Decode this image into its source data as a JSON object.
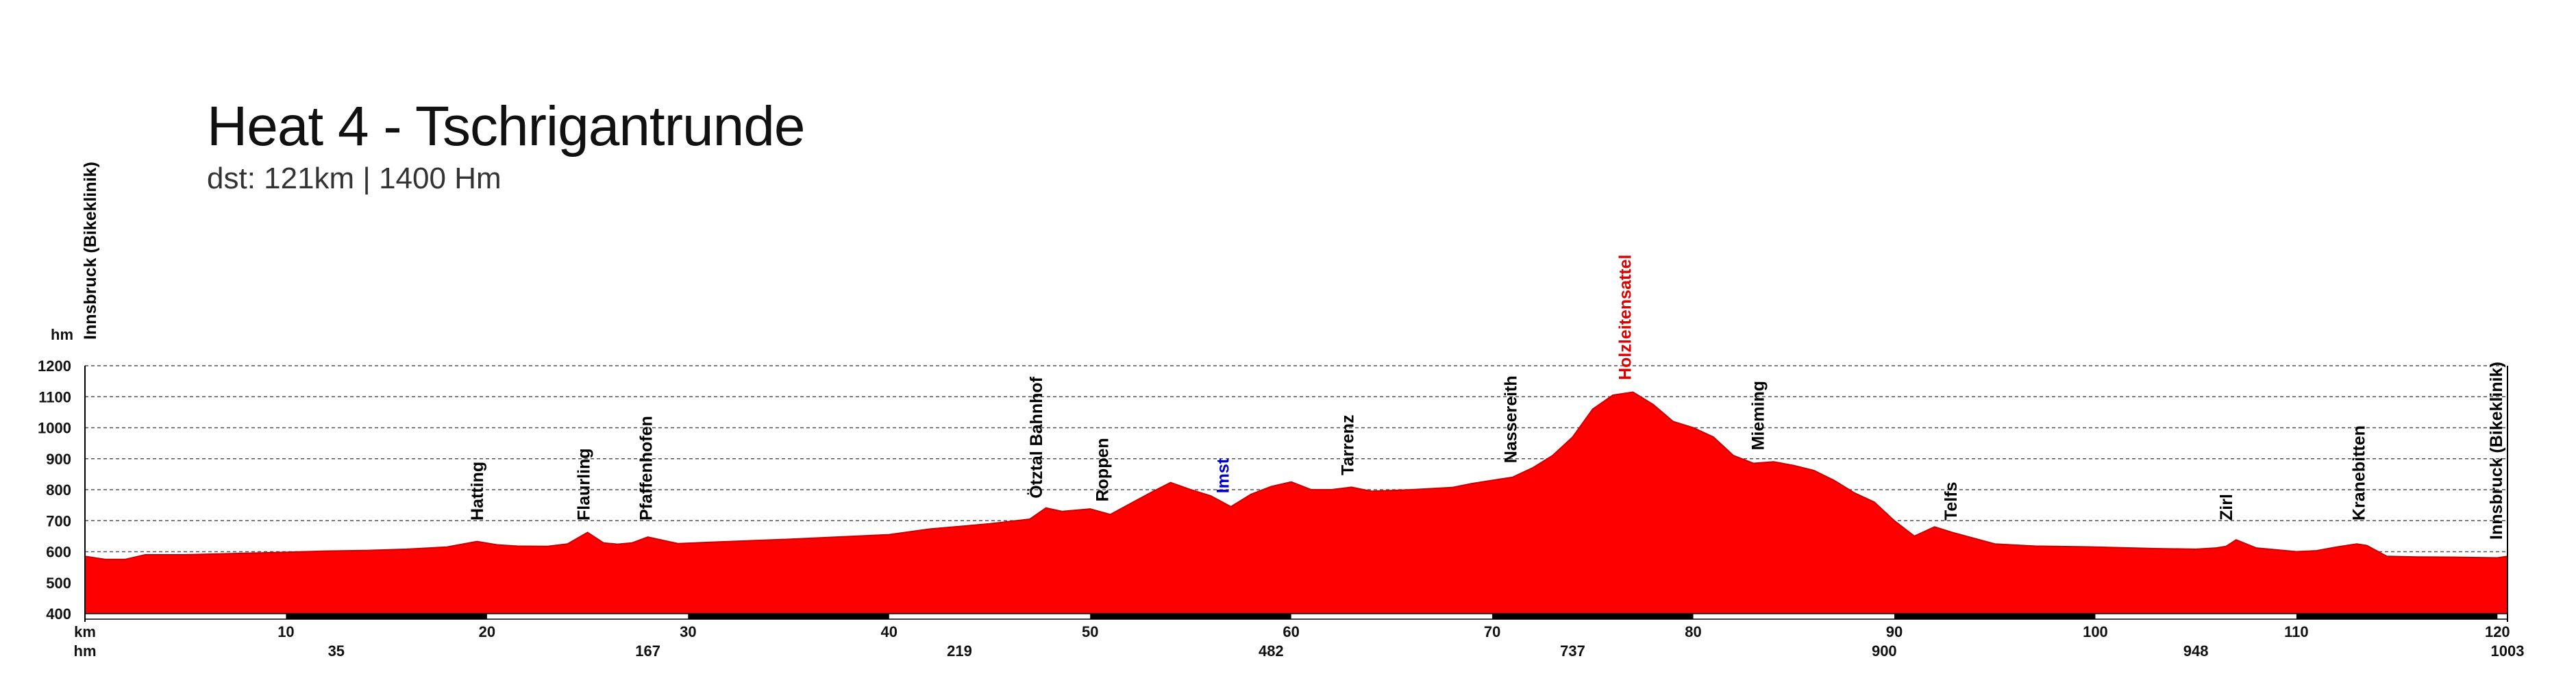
{
  "title": "Heat 4 - Tschrigantrunde",
  "subtitle": "dst: 121km | 1400 Hm",
  "chart_data": {
    "type": "area",
    "title": "Heat 4 - Tschrigantrunde",
    "subtitle": "dst: 121km | 1400 Hm",
    "ylabel": "hm",
    "xlabel": "km",
    "secondary_xlabel": "hm",
    "xlim": [
      0,
      120.5
    ],
    "ylim": [
      400,
      1200
    ],
    "yticks": [
      "400",
      "500",
      "600",
      "700",
      "800",
      "900",
      "1000",
      "1100",
      "1200"
    ],
    "xticks": [
      "10",
      "20",
      "30",
      "40",
      "50",
      "60",
      "70",
      "80",
      "90",
      "100",
      "110",
      "120"
    ],
    "grid": true,
    "fill_color": "#ff0000",
    "elevation_gain_ticks": [
      {
        "km": 12.5,
        "label": "35"
      },
      {
        "km": 28.0,
        "label": "167"
      },
      {
        "km": 43.5,
        "label": "219"
      },
      {
        "km": 59.0,
        "label": "482"
      },
      {
        "km": 74.0,
        "label": "737"
      },
      {
        "km": 89.5,
        "label": "900"
      },
      {
        "km": 105.0,
        "label": "948"
      },
      {
        "km": 120.5,
        "label": "1003"
      }
    ],
    "x": [
      0,
      1,
      2,
      3,
      5,
      8,
      10,
      12,
      14,
      16,
      18,
      19.5,
      20.5,
      21.5,
      23,
      24,
      25,
      25.8,
      26.5,
      27.2,
      28,
      29.5,
      31,
      35,
      40,
      42,
      45,
      47,
      47.8,
      48.6,
      50,
      51,
      52,
      53,
      54,
      55,
      56,
      57,
      58,
      59,
      60,
      61,
      62,
      63,
      64,
      66,
      68,
      69,
      70,
      71,
      72,
      73,
      74,
      75,
      76,
      77,
      78,
      79,
      80,
      81,
      82,
      83,
      84,
      85,
      86,
      87,
      88,
      89,
      90,
      91,
      92,
      93,
      95,
      97,
      100,
      103,
      105,
      106,
      106.5,
      107,
      108,
      110,
      111,
      112,
      113,
      113.5,
      114.5,
      116,
      118,
      120,
      120.5
    ],
    "elevation": [
      585,
      575,
      575,
      590,
      590,
      595,
      598,
      602,
      604,
      608,
      615,
      633,
      622,
      618,
      617,
      625,
      662,
      628,
      624,
      628,
      647,
      626,
      630,
      640,
      655,
      673,
      690,
      705,
      741,
      730,
      738,
      720,
      755,
      790,
      823,
      800,
      780,
      745,
      785,
      810,
      825,
      800,
      800,
      808,
      795,
      800,
      807,
      820,
      830,
      840,
      870,
      910,
      970,
      1060,
      1105,
      1115,
      1075,
      1020,
      1000,
      970,
      910,
      885,
      890,
      878,
      862,
      830,
      790,
      760,
      700,
      650,
      680,
      660,
      625,
      618,
      615,
      610,
      608,
      612,
      617,
      638,
      612,
      600,
      603,
      615,
      625,
      620,
      585,
      583,
      582,
      580,
      585
    ],
    "waypoints": [
      {
        "km": 0,
        "name": "Innsbruck (Bikeklinik)",
        "color": "#000000"
      },
      {
        "km": 19.8,
        "name": "Hatting",
        "color": "#000000"
      },
      {
        "km": 25.1,
        "name": "Flaurling",
        "color": "#000000"
      },
      {
        "km": 28.2,
        "name": "Pfaffenhofen",
        "color": "#000000"
      },
      {
        "km": 47.6,
        "name": "Ötztal Bahnhof",
        "color": "#000000"
      },
      {
        "km": 50.9,
        "name": "Roppen",
        "color": "#000000"
      },
      {
        "km": 56.9,
        "name": "Imst",
        "color": "#0000cc"
      },
      {
        "km": 63.1,
        "name": "Tarrenz",
        "color": "#000000"
      },
      {
        "km": 71.2,
        "name": "Nassereith",
        "color": "#000000"
      },
      {
        "km": 76.9,
        "name": "Holzleitensattel",
        "color": "#dd0000"
      },
      {
        "km": 83.5,
        "name": "Mieming",
        "color": "#000000"
      },
      {
        "km": 93.1,
        "name": "Telfs",
        "color": "#000000"
      },
      {
        "km": 106.8,
        "name": "Zirl",
        "color": "#000000"
      },
      {
        "km": 113.4,
        "name": "Kranebitten",
        "color": "#000000"
      },
      {
        "km": 120.5,
        "name": "Innsbruck (Bikeklinik)",
        "color": "#000000"
      }
    ]
  }
}
